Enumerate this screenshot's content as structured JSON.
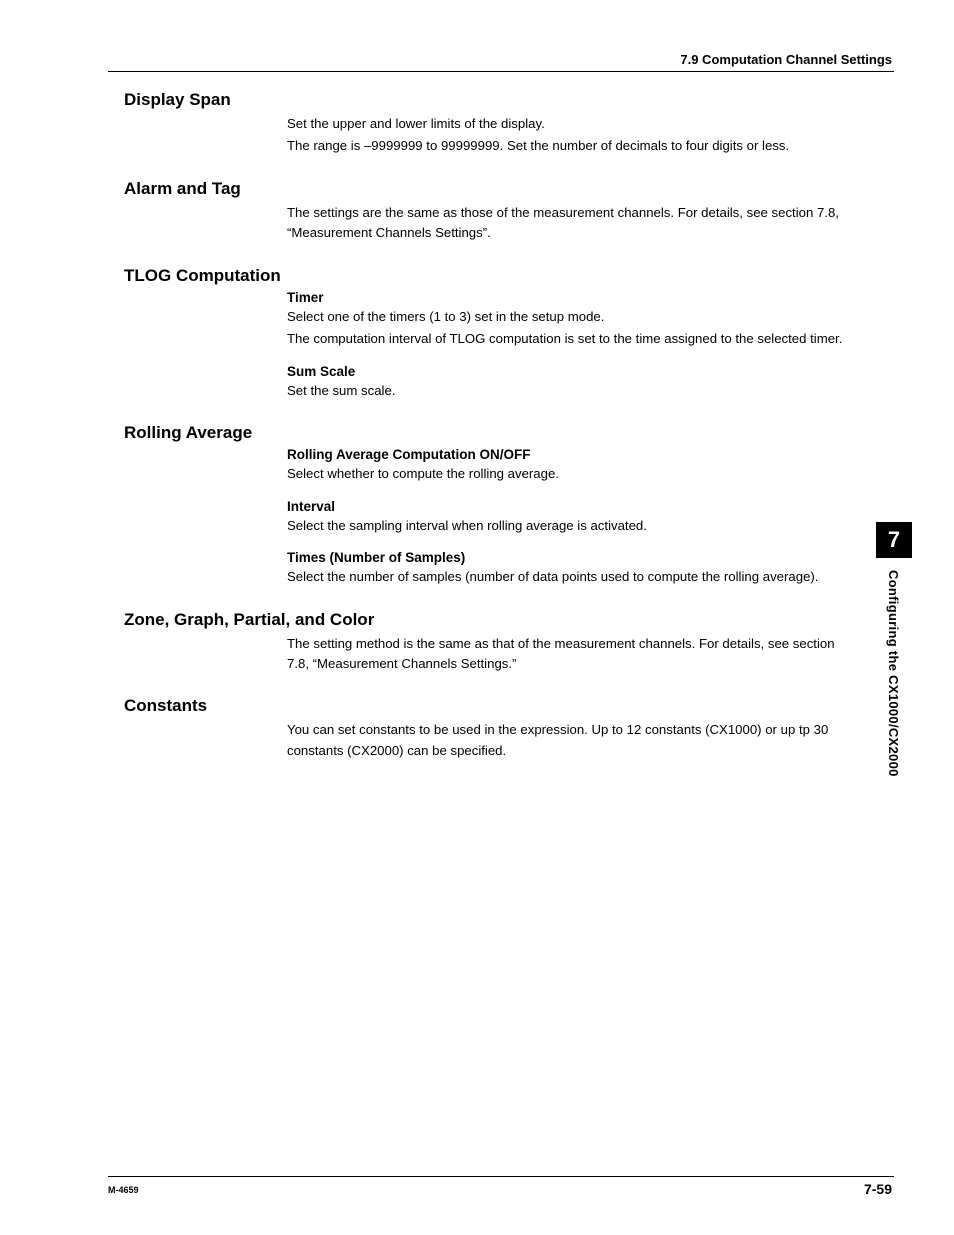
{
  "header": {
    "section_label": "7.9  Computation Channel Settings"
  },
  "sections": [
    {
      "heading": "Display Span",
      "paragraphs": [
        "Set the upper and lower limits of the display.",
        "The range is –9999999 to 99999999.  Set the number of decimals to four digits or less."
      ]
    },
    {
      "heading": "Alarm and Tag",
      "paragraphs": [
        "The settings are the same as those of the measurement channels.  For details, see section 7.8, “Measurement Channels Settings”."
      ]
    },
    {
      "heading": "TLOG Computation",
      "subsections": [
        {
          "sub_heading": "Timer",
          "paragraphs": [
            "Select one of the timers (1 to 3) set in the setup mode.",
            "The computation interval of TLOG computation is set to the time assigned to the selected timer."
          ]
        },
        {
          "sub_heading": "Sum Scale",
          "paragraphs": [
            "Set the sum scale."
          ]
        }
      ]
    },
    {
      "heading": "Rolling Average",
      "subsections": [
        {
          "sub_heading": "Rolling Average Computation ON/OFF",
          "paragraphs": [
            "Select whether to compute the rolling average."
          ]
        },
        {
          "sub_heading": "Interval",
          "paragraphs": [
            "Select the sampling interval when rolling average is activated."
          ]
        },
        {
          "sub_heading": "Times (Number of Samples)",
          "paragraphs": [
            "Select the number of samples (number of data points used to compute the rolling average)."
          ]
        }
      ]
    },
    {
      "heading": "Zone, Graph, Partial, and Color",
      "paragraphs": [
        "The setting method is the same as that of the measurement channels. For details, see section 7.8, “Measurement Channels Settings.”"
      ]
    },
    {
      "heading": "Constants",
      "paragraphs": [
        "You can set constants to be used in the expression.  Up to 12 constants (CX1000) or up tp 30 constants (CX2000) can be specified."
      ]
    }
  ],
  "side_tab": {
    "chapter_number": "7",
    "chapter_title": "Configuring the CX1000/CX2000"
  },
  "footer": {
    "left": "M-4659",
    "right": "7-59"
  }
}
